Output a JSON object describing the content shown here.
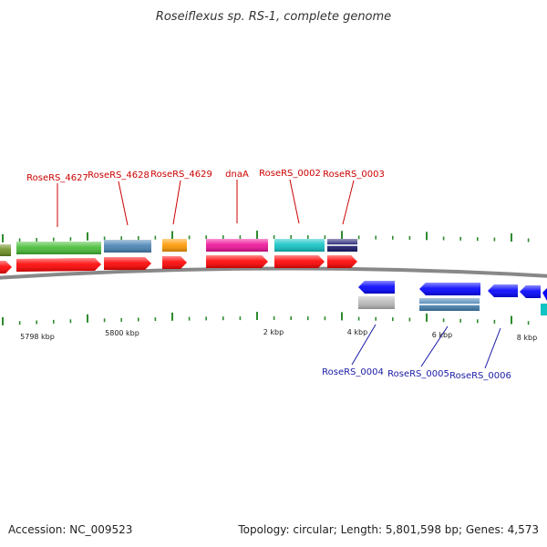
{
  "title": "Roseiflexus sp. RS-1, complete genome",
  "footer": {
    "accession": "Accession: NC_009523",
    "summary": "Topology: circular; Length: 5,801,598 bp; Genes: 4,573"
  },
  "scale_labels": [
    "5798 kbp",
    "5800 kbp",
    "2 kbp",
    "4 kbp",
    "6 kbp",
    "8 kbp"
  ],
  "gene_labels": {
    "forward": [
      "RoseRS_4627",
      "RoseRS_4628",
      "RoseRS_4629",
      "dnaA",
      "RoseRS_0002",
      "RoseRS_0003"
    ],
    "reverse": [
      "RoseRS_0004",
      "RoseRS_0005",
      "RoseRS_0006"
    ]
  },
  "colors": {
    "title": "#333333",
    "forward_label": "#cc0000",
    "reverse_label": "#1a1aa6",
    "gene_strand": "#ff0000",
    "reverse_gene": "#0000ff",
    "tick": "#2e8b2e",
    "backbone": "#888888",
    "scale_text": "#222222"
  },
  "features": [
    {
      "id": "f_partial",
      "color": "#6b8e23"
    },
    {
      "id": "RoseRS_4627",
      "color": "#44bb33"
    },
    {
      "id": "RoseRS_4628",
      "color": "#4682b4"
    },
    {
      "id": "RoseRS_4629",
      "color": "#ff9900"
    },
    {
      "id": "dnaA",
      "color": "#ee1199"
    },
    {
      "id": "RoseRS_0002",
      "color": "#11c4c4"
    },
    {
      "id": "RoseRS_0003",
      "color": "#1a1a6e"
    },
    {
      "id": "RoseRS_0004",
      "color": "#b8b8b8"
    },
    {
      "id": "RoseRS_0005",
      "color": "#4682b4"
    },
    {
      "id": "RoseRS_next",
      "color": "#11c4c4"
    }
  ]
}
